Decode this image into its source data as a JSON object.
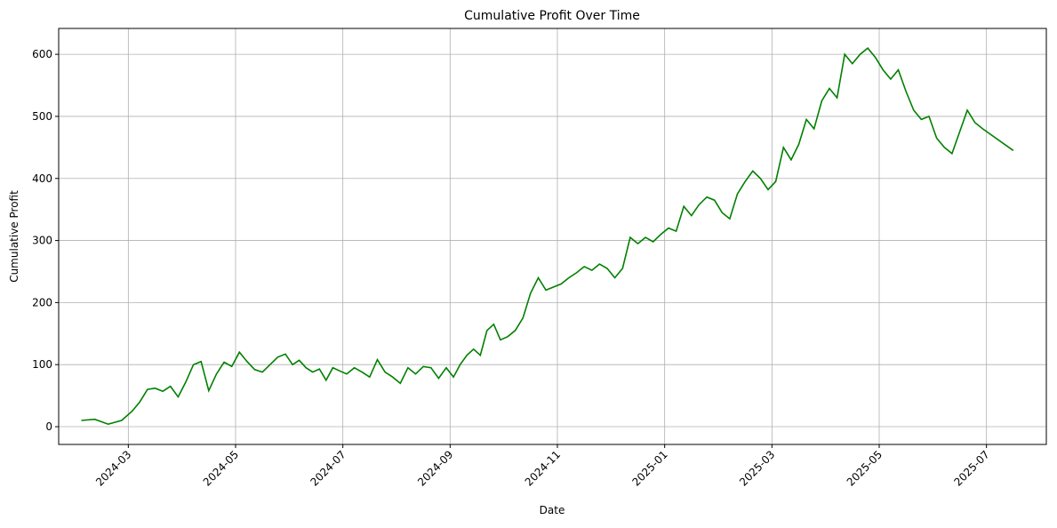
{
  "chart_data": {
    "type": "line",
    "title": "Cumulative Profit Over Time",
    "x_label": "Date",
    "y_label": "Cumulative Profit",
    "x": [
      "2024-02",
      "2024-02",
      "2024-02",
      "2024-02",
      "2024-03",
      "2024-03",
      "2024-03",
      "2024-03",
      "2024-03",
      "2024-03",
      "2024-03",
      "2024-04",
      "2024-04",
      "2024-04",
      "2024-04",
      "2024-04",
      "2024-04",
      "2024-04",
      "2024-05",
      "2024-05",
      "2024-05",
      "2024-05",
      "2024-05",
      "2024-05",
      "2024-05",
      "2024-06",
      "2024-06",
      "2024-06",
      "2024-06",
      "2024-06",
      "2024-06",
      "2024-06",
      "2024-06",
      "2024-07",
      "2024-07",
      "2024-07",
      "2024-07",
      "2024-07",
      "2024-07",
      "2024-07",
      "2024-08",
      "2024-08",
      "2024-08",
      "2024-08",
      "2024-08",
      "2024-08",
      "2024-08",
      "2024-09",
      "2024-09",
      "2024-09",
      "2024-09",
      "2024-09",
      "2024-09",
      "2024-09",
      "2024-09",
      "2024-10",
      "2024-10",
      "2024-10",
      "2024-10",
      "2024-10",
      "2024-10",
      "2024-10",
      "2024-11",
      "2024-11",
      "2024-11",
      "2024-11",
      "2024-11",
      "2024-11",
      "2024-11",
      "2024-12",
      "2024-12",
      "2024-12",
      "2024-12",
      "2024-12",
      "2024-12",
      "2024-12",
      "2025-01",
      "2025-01",
      "2025-01",
      "2025-01",
      "2025-01",
      "2025-01",
      "2025-01",
      "2025-02",
      "2025-02",
      "2025-02",
      "2025-02",
      "2025-02",
      "2025-02",
      "2025-02",
      "2025-03",
      "2025-03",
      "2025-03",
      "2025-03",
      "2025-03",
      "2025-03",
      "2025-03",
      "2025-04",
      "2025-04",
      "2025-04",
      "2025-04",
      "2025-04",
      "2025-04",
      "2025-04",
      "2025-05",
      "2025-05",
      "2025-05",
      "2025-05",
      "2025-05",
      "2025-05",
      "2025-05",
      "2025-06",
      "2025-06",
      "2025-06",
      "2025-06",
      "2025-06",
      "2025-06",
      "2025-06",
      "2025-07"
    ],
    "series": [
      {
        "name": "Cumulative Profit",
        "color": "#008000",
        "values": [
          10,
          12,
          4,
          10,
          25,
          40,
          60,
          62,
          57,
          65,
          48,
          72,
          100,
          105,
          58,
          85,
          104,
          97,
          120,
          105,
          92,
          88,
          100,
          112,
          117,
          100,
          107,
          95,
          88,
          93,
          75,
          95,
          90,
          85,
          95,
          88,
          80,
          108,
          88,
          80,
          70,
          95,
          85,
          97,
          95,
          78,
          95,
          80,
          100,
          115,
          125,
          115,
          155,
          165,
          140,
          145,
          155,
          175,
          215,
          240,
          220,
          225,
          230,
          240,
          248,
          258,
          252,
          262,
          255,
          240,
          255,
          305,
          295,
          305,
          298,
          310,
          320,
          315,
          355,
          340,
          358,
          370,
          365,
          345,
          335,
          375,
          395,
          412,
          400,
          382,
          395,
          450,
          430,
          455,
          495,
          480,
          525,
          545,
          530,
          600,
          585,
          600,
          610,
          595,
          575,
          560,
          575,
          540,
          510,
          495,
          500,
          465,
          450,
          440,
          475,
          510,
          490,
          480,
          445
        ]
      }
    ],
    "xlim": [
      "2024-02",
      "2025-07"
    ],
    "xticks": [
      "2024-03",
      "2024-05",
      "2024-07",
      "2024-09",
      "2024-11",
      "2025-01",
      "2025-03",
      "2025-05",
      "2025-07"
    ],
    "ylim": [
      -28.6,
      641.7
    ],
    "yticks": [
      0,
      100,
      200,
      300,
      400,
      500,
      600
    ],
    "grid": true
  }
}
